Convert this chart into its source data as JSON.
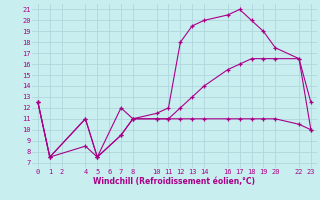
{
  "xlabel": "Windchill (Refroidissement éolien,°C)",
  "bg_color": "#c8eef0",
  "grid_color": "#b0d8dc",
  "line_color": "#aa0088",
  "xlim": [
    -0.5,
    23.5
  ],
  "ylim": [
    6.5,
    21.5
  ],
  "xticks": [
    0,
    1,
    2,
    4,
    5,
    6,
    7,
    8,
    10,
    11,
    12,
    13,
    14,
    16,
    17,
    18,
    19,
    20,
    22,
    23
  ],
  "yticks": [
    7,
    8,
    9,
    10,
    11,
    12,
    13,
    14,
    15,
    16,
    17,
    18,
    19,
    20,
    21
  ],
  "line1_x": [
    0,
    1,
    4,
    5,
    7,
    8,
    10,
    11,
    12,
    13,
    14,
    16,
    17,
    18,
    19,
    20,
    22,
    23
  ],
  "line1_y": [
    12.5,
    7.5,
    8.5,
    7.5,
    9.5,
    11.0,
    11.5,
    12.0,
    18.0,
    19.5,
    20.0,
    20.5,
    21.0,
    20.0,
    19.0,
    17.5,
    16.5,
    12.5
  ],
  "line2_x": [
    0,
    1,
    4,
    5,
    7,
    8,
    10,
    11,
    12,
    13,
    14,
    16,
    17,
    18,
    19,
    20,
    22,
    23
  ],
  "line2_y": [
    12.5,
    7.5,
    11.0,
    7.5,
    9.5,
    11.0,
    11.0,
    11.0,
    11.0,
    11.0,
    11.0,
    11.0,
    11.0,
    11.0,
    11.0,
    11.0,
    10.5,
    10.0
  ],
  "line3_x": [
    0,
    1,
    4,
    5,
    7,
    8,
    10,
    11,
    12,
    13,
    14,
    16,
    17,
    18,
    19,
    20,
    22,
    23
  ],
  "line3_y": [
    12.5,
    7.5,
    11.0,
    7.5,
    12.0,
    11.0,
    11.0,
    11.0,
    12.0,
    13.0,
    14.0,
    15.5,
    16.0,
    16.5,
    16.5,
    16.5,
    16.5,
    10.0
  ],
  "tick_fontsize": 5.0,
  "xlabel_fontsize": 5.5,
  "lw": 0.8,
  "ms": 2.5
}
